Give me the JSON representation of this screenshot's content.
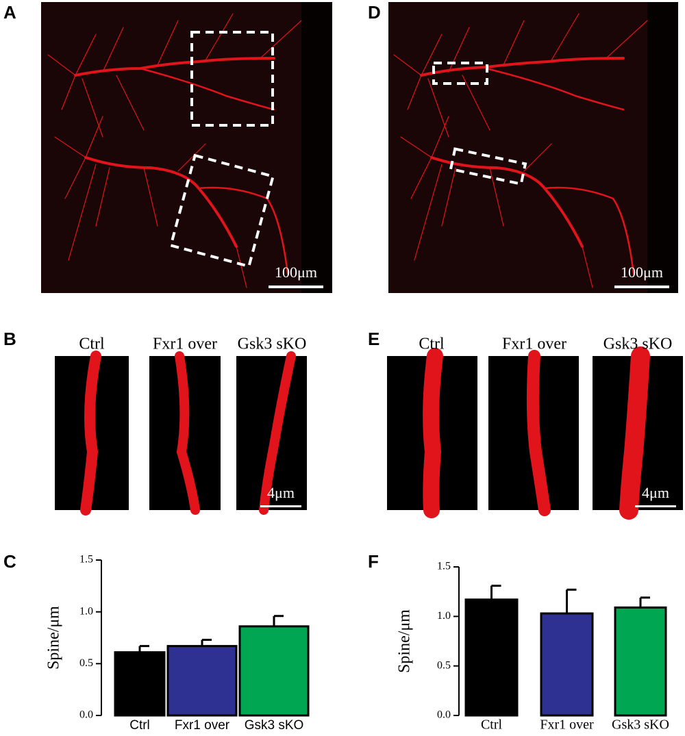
{
  "panels": {
    "A": {
      "label": "A",
      "scale": "100μm"
    },
    "B": {
      "label": "B",
      "captions": [
        "Ctrl",
        "Fxr1 over",
        "Gsk3 sKO"
      ],
      "scale": "4μm"
    },
    "C": {
      "label": "C"
    },
    "D": {
      "label": "D",
      "scale": "100μm"
    },
    "E": {
      "label": "E",
      "captions": [
        "Ctrl",
        "Fxr1 over",
        "Gsk3 sKO"
      ],
      "scale": "4μm"
    },
    "F": {
      "label": "F"
    }
  },
  "chart_data": [
    {
      "type": "bar",
      "ylabel": "Spine/μm",
      "categories": [
        "Ctrl",
        "Fxr1 over",
        "Gsk3 sKO"
      ],
      "values": [
        0.61,
        0.67,
        0.86
      ],
      "errors": [
        0.06,
        0.06,
        0.1
      ],
      "colors": [
        "#000000",
        "#2e3192",
        "#00a651"
      ],
      "ylim": [
        0,
        1.5
      ],
      "yticks": [
        {
          "value": 0,
          "label": "0.0"
        },
        0.5,
        {
          "value": 1,
          "label": "1.0"
        },
        1.5
      ]
    },
    {
      "type": "bar",
      "ylabel": "Spine/μm",
      "categories": [
        "Ctrl",
        "Fxr1 over",
        "Gsk3 sKO"
      ],
      "values": [
        1.17,
        1.03,
        1.09
      ],
      "errors": [
        0.14,
        0.24,
        0.1
      ],
      "colors": [
        "#000000",
        "#2e3192",
        "#00a651"
      ],
      "ylim": [
        0,
        1.5
      ],
      "yticks": [
        {
          "value": 0,
          "label": "0.0"
        },
        0.5,
        {
          "value": 1,
          "label": "1.0"
        },
        1.5
      ]
    }
  ]
}
